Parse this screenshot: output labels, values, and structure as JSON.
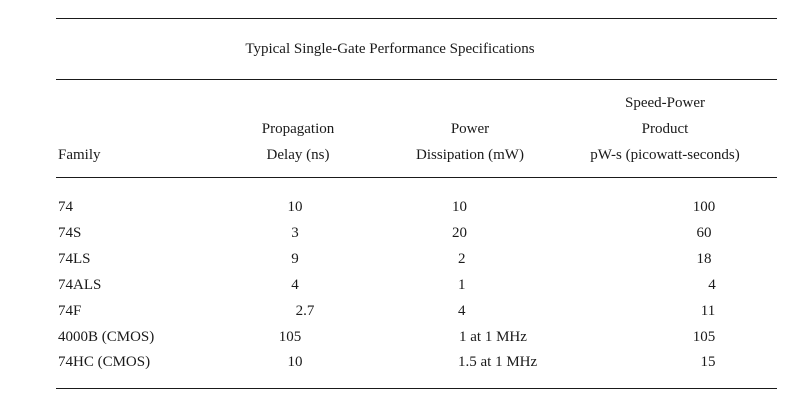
{
  "table": {
    "title": "Typical Single-Gate Performance Specifications",
    "headers": {
      "family": "Family",
      "prop_line1": "Propagation",
      "prop_line2": "Delay (ns)",
      "power_line1": "Power",
      "power_line2": "Dissipation (mW)",
      "sp_line1": "Speed-Power",
      "sp_line2": "Product",
      "sp_line3": "pW-s (picowatt-seconds)"
    },
    "rows": [
      {
        "family": "74",
        "delay": "10",
        "power": "10",
        "product": "100"
      },
      {
        "family": "74S",
        "delay": "3",
        "power": "20",
        "product": "60"
      },
      {
        "family": "74LS",
        "delay": "9",
        "power": "2",
        "product": "18"
      },
      {
        "family": "74ALS",
        "delay": "4",
        "power": "1",
        "product": "4"
      },
      {
        "family": "74F",
        "delay": "2.7",
        "power": "4",
        "product": "11"
      },
      {
        "family": "4000B (CMOS)",
        "delay": "105",
        "power": "1 at 1 MHz",
        "product": "105"
      },
      {
        "family": "74HC (CMOS)",
        "delay": "10",
        "power": "1.5 at 1 MHz",
        "product": "15"
      }
    ]
  }
}
